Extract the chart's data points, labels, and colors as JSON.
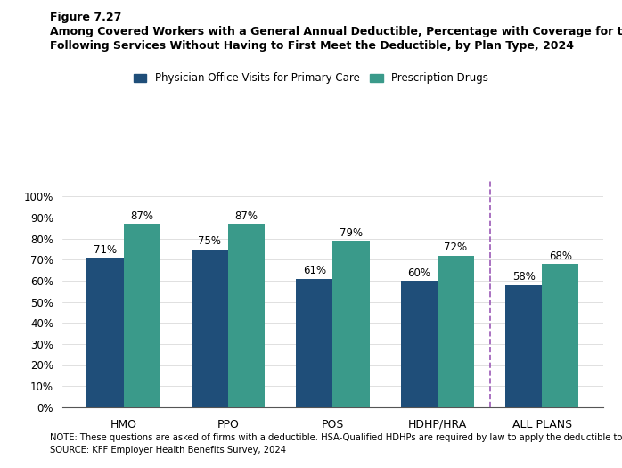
{
  "figure_label": "Figure 7.27",
  "title_line1": "Among Covered Workers with a General Annual Deductible, Percentage with Coverage for the",
  "title_line2": "Following Services Without Having to First Meet the Deductible, by Plan Type, 2024",
  "categories": [
    "HMO",
    "PPO",
    "POS",
    "HDHP/HRA",
    "ALL PLANS"
  ],
  "physician_values": [
    71,
    75,
    61,
    60,
    58
  ],
  "prescription_values": [
    87,
    87,
    79,
    72,
    68
  ],
  "physician_color": "#1F4E79",
  "prescription_color": "#3A9A8A",
  "physician_label": "Physician Office Visits for Primary Care",
  "prescription_label": "Prescription Drugs",
  "ylim": [
    0,
    100
  ],
  "yticks": [
    0,
    10,
    20,
    30,
    40,
    50,
    60,
    70,
    80,
    90,
    100
  ],
  "ytick_labels": [
    "0%",
    "10%",
    "20%",
    "30%",
    "40%",
    "50%",
    "60%",
    "70%",
    "80%",
    "90%",
    "100%"
  ],
  "note": "NOTE: These questions are asked of firms with a deductible. HSA-Qualified HDHPs are required by law to apply the deductible to most services.",
  "source": "SOURCE: KFF Employer Health Benefits Survey, 2024",
  "dashed_line_color": "#9B59B6",
  "bar_width": 0.35
}
